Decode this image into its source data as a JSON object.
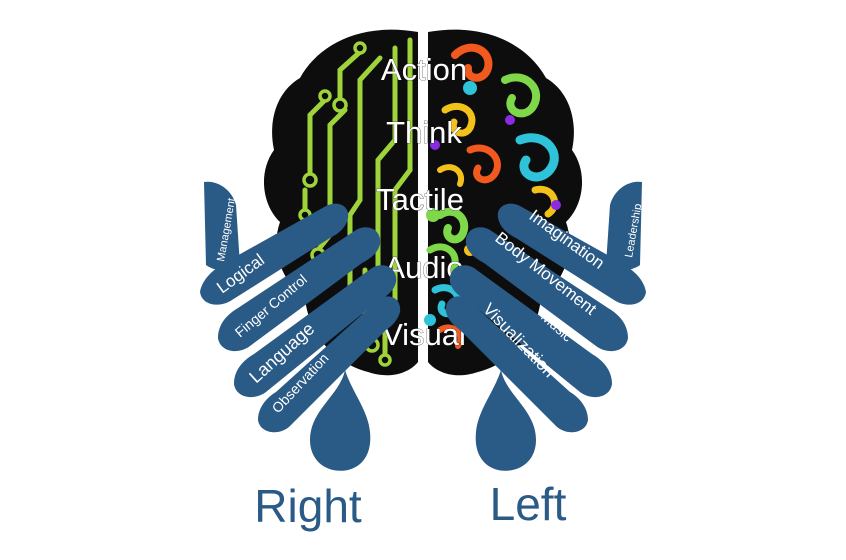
{
  "colors": {
    "hand_blue": "#2a5a86",
    "brain_black": "#0d0d0d",
    "circuit_green": "#9fd33a",
    "swirl_orange": "#f2591e",
    "swirl_yellow": "#f2c21b",
    "swirl_cyan": "#2fc3d9",
    "swirl_purple": "#8a2be2",
    "swirl_lime": "#7fd84a"
  },
  "brain_labels": [
    "Action",
    "Think",
    "Tactile",
    "Audio",
    "Visual"
  ],
  "right_hand": {
    "side_label": "Right",
    "fingers": [
      "Management",
      "Logical",
      "Finger Control",
      "Language",
      "Observation"
    ]
  },
  "left_hand": {
    "side_label": "Left",
    "fingers": [
      "Leadership",
      "Imagination",
      "Body Movement",
      "Music",
      "Visualization"
    ]
  }
}
